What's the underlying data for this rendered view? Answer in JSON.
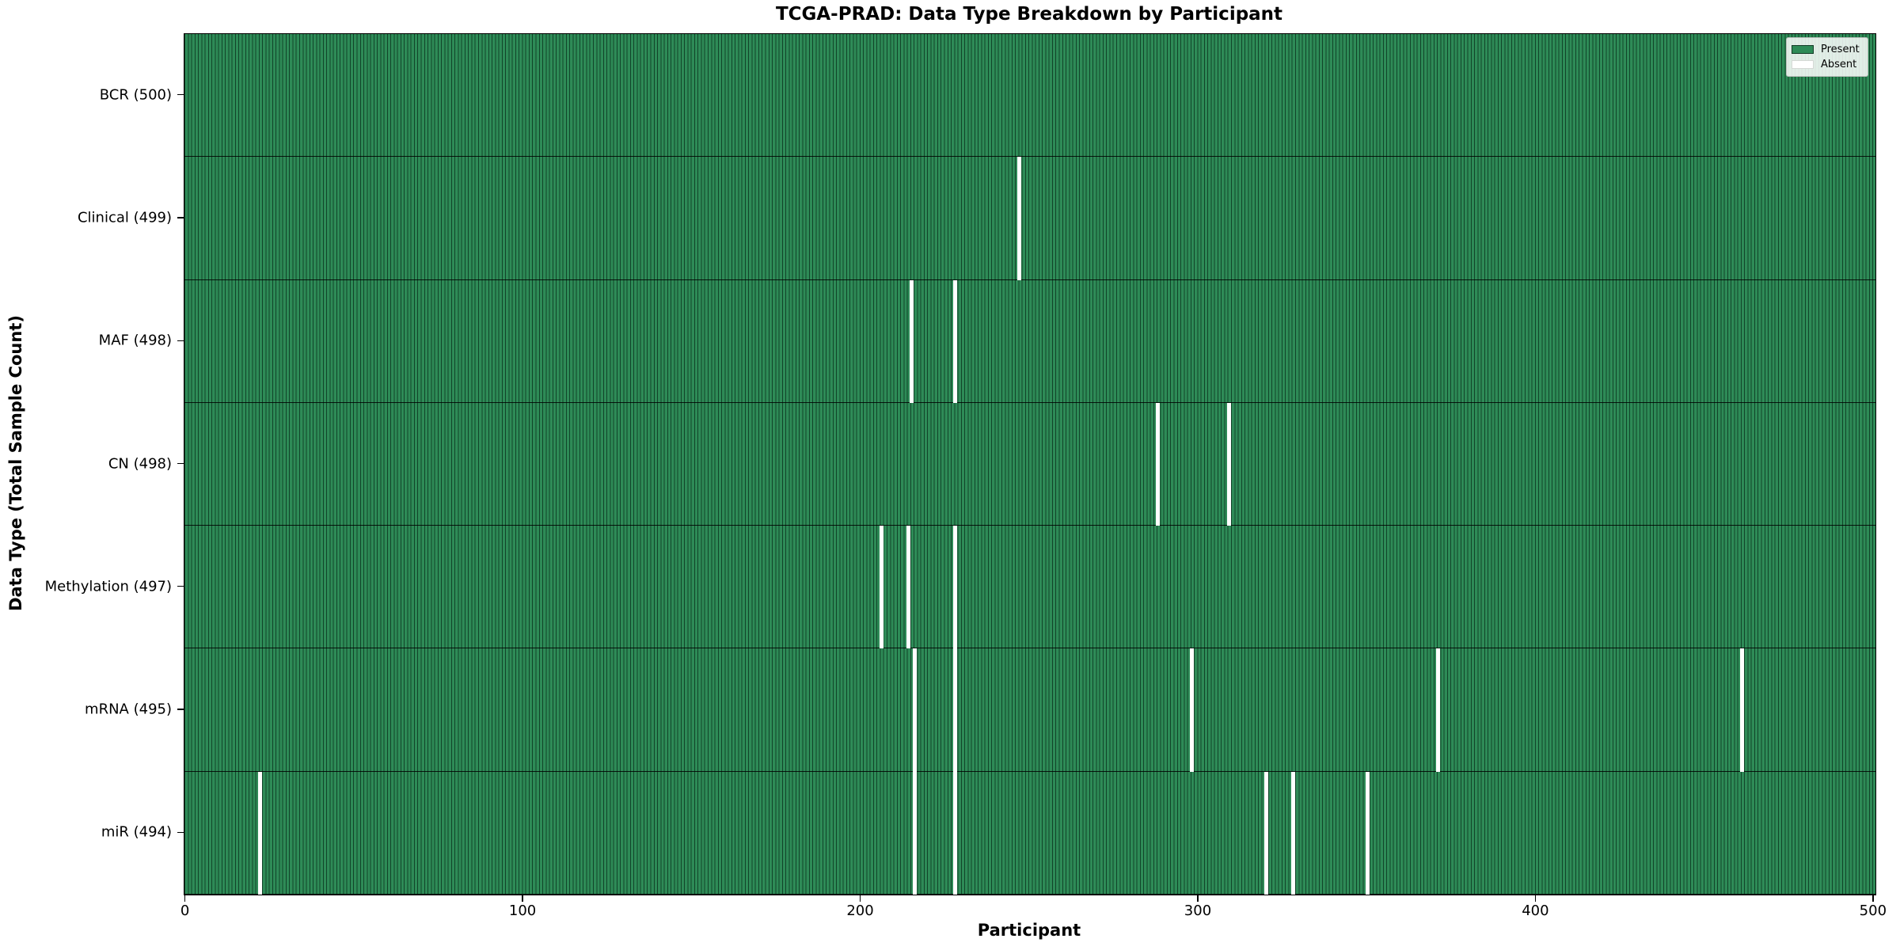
{
  "chart_data": {
    "type": "heatmap",
    "title": "TCGA-PRAD: Data Type Breakdown by Participant",
    "xlabel": "Participant",
    "ylabel": "Data Type (Total Sample Count)",
    "x_ticks": [
      0,
      100,
      200,
      300,
      400,
      500
    ],
    "x_range": [
      -0.5,
      500.5
    ],
    "n_participants": 500,
    "grid": false,
    "legend_position": "upper right",
    "legend": [
      {
        "label": "Present",
        "color": "#2e8b57"
      },
      {
        "label": "Absent",
        "color": "#ffffff"
      }
    ],
    "colors": {
      "present": "#2e8b57",
      "absent": "#ffffff",
      "bar_edge": "#123b26",
      "row_separator": "#000000",
      "frame": "#000000"
    },
    "rows": [
      {
        "name": "bcr",
        "label": "BCR (500)",
        "total": 500,
        "absent_participants": []
      },
      {
        "name": "clinical",
        "label": "Clinical (499)",
        "total": 499,
        "absent_participants": [
          247
        ]
      },
      {
        "name": "maf",
        "label": "MAF (498)",
        "total": 498,
        "absent_participants": [
          215,
          228
        ]
      },
      {
        "name": "cn",
        "label": "CN (498)",
        "total": 498,
        "absent_participants": [
          288,
          309
        ]
      },
      {
        "name": "methylation",
        "label": "Methylation (497)",
        "total": 497,
        "absent_participants": [
          206,
          214,
          228
        ]
      },
      {
        "name": "mrna",
        "label": "mRNA (495)",
        "total": 495,
        "absent_participants": [
          216,
          228,
          298,
          371,
          461
        ]
      },
      {
        "name": "mir",
        "label": "miR (494)",
        "total": 494,
        "absent_participants": [
          22,
          216,
          228,
          320,
          328,
          350
        ]
      }
    ]
  }
}
